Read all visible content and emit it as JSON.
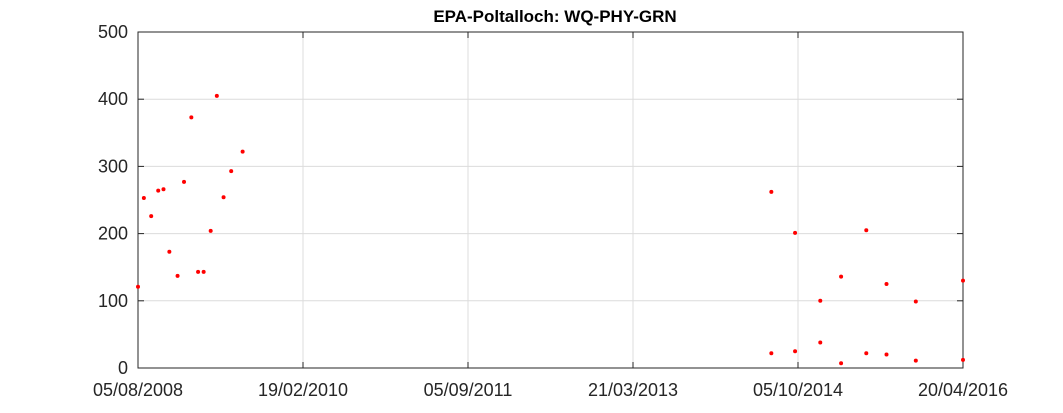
{
  "chart_data": {
    "type": "scatter",
    "title": "EPA-Poltalloch: WQ-PHY-GRN",
    "xlabel": "",
    "ylabel": "",
    "x_type": "date",
    "xlim": [
      "05/08/2008",
      "20/04/2016"
    ],
    "ylim": [
      0,
      500
    ],
    "x_ticks": [
      "05/08/2008",
      "19/02/2010",
      "05/09/2011",
      "21/03/2013",
      "05/10/2014",
      "20/04/2016"
    ],
    "y_ticks": [
      0,
      100,
      200,
      300,
      400,
      500
    ],
    "grid": true,
    "marker_color": "#ff0000",
    "series": [
      {
        "points": [
          {
            "x": "05/08/2008",
            "y": 121
          },
          {
            "x": "25/08/2008",
            "y": 253
          },
          {
            "x": "19/09/2008",
            "y": 226
          },
          {
            "x": "13/10/2008",
            "y": 264
          },
          {
            "x": "31/10/2008",
            "y": 266
          },
          {
            "x": "20/11/2008",
            "y": 173
          },
          {
            "x": "18/12/2008",
            "y": 137
          },
          {
            "x": "09/01/2009",
            "y": 277
          },
          {
            "x": "03/02/2009",
            "y": 373
          },
          {
            "x": "26/02/2009",
            "y": 143
          },
          {
            "x": "17/03/2009",
            "y": 143
          },
          {
            "x": "10/04/2009",
            "y": 204
          },
          {
            "x": "01/05/2009",
            "y": 405
          },
          {
            "x": "24/05/2009",
            "y": 254
          },
          {
            "x": "19/06/2009",
            "y": 293
          },
          {
            "x": "28/07/2009",
            "y": 322
          },
          {
            "x": "06/07/2014",
            "y": 262
          },
          {
            "x": "06/07/2014",
            "y": 22
          },
          {
            "x": "25/09/2014",
            "y": 201
          },
          {
            "x": "25/09/2014",
            "y": 25
          },
          {
            "x": "20/12/2014",
            "y": 100
          },
          {
            "x": "20/12/2014",
            "y": 38
          },
          {
            "x": "01/03/2015",
            "y": 136
          },
          {
            "x": "01/03/2015",
            "y": 7
          },
          {
            "x": "26/05/2015",
            "y": 205
          },
          {
            "x": "26/05/2015",
            "y": 22
          },
          {
            "x": "03/08/2015",
            "y": 125
          },
          {
            "x": "03/08/2015",
            "y": 20
          },
          {
            "x": "11/11/2015",
            "y": 99
          },
          {
            "x": "11/11/2015",
            "y": 11
          },
          {
            "x": "20/04/2016",
            "y": 130
          },
          {
            "x": "20/04/2016",
            "y": 12
          }
        ]
      }
    ]
  }
}
